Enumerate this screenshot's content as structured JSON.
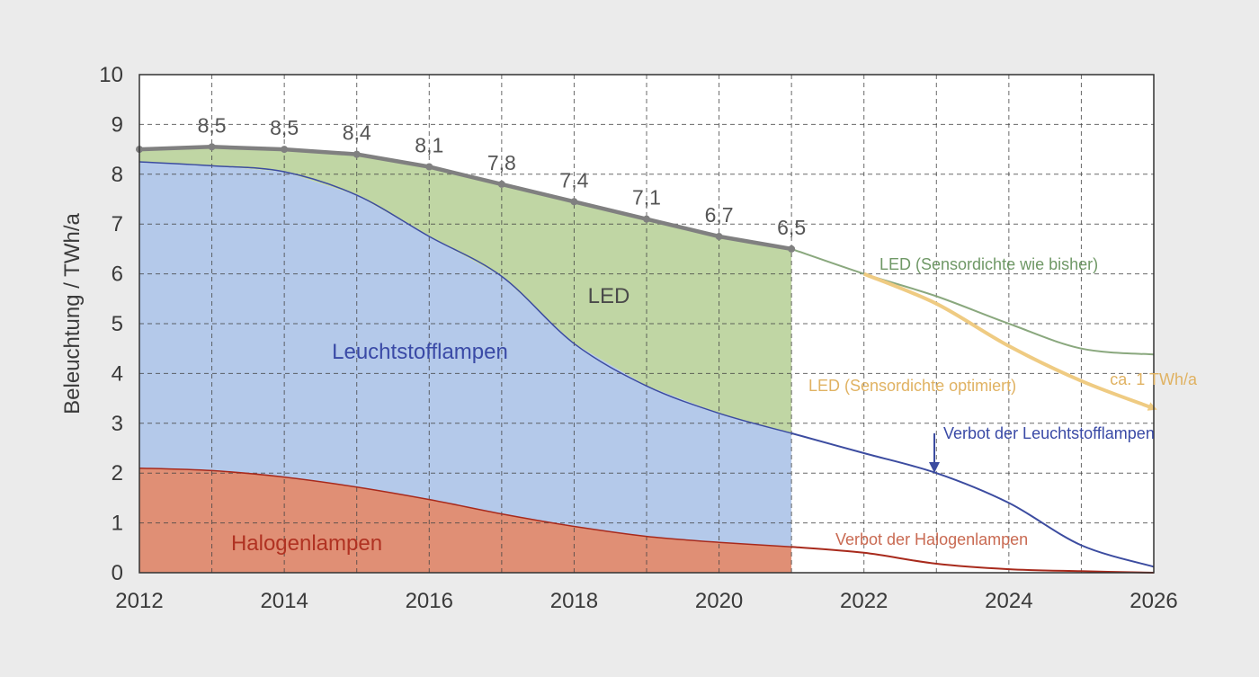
{
  "chart_data": {
    "type": "area",
    "ylabel": "Beleuchtung / TWh/a",
    "xlabel": "",
    "xlim": [
      2012,
      2026
    ],
    "ylim": [
      0,
      10
    ],
    "x_ticks": [
      "2012",
      "2014",
      "2016",
      "2018",
      "2020",
      "2022",
      "2024",
      "2026"
    ],
    "y_ticks": [
      "0",
      "1",
      "2",
      "3",
      "4",
      "5",
      "6",
      "7",
      "8",
      "9",
      "10"
    ],
    "grid": true,
    "colors": {
      "halogen_fill": "#e08f75",
      "halogen_line": "#a82a1c",
      "leucht_fill": "#b4c9ea",
      "leucht_line": "#3c4ca0",
      "led_fill": "#c0d6a4",
      "led_line": "#8aa87e",
      "led_opt_line": "#efcb82",
      "total_line": "#808080",
      "halogen_text": "#b03222",
      "leucht_text": "#3a4aa6",
      "led_opt_text": "#e0b262",
      "led_text": "#4a4a4a"
    },
    "totals": {
      "x": [
        2012,
        2013,
        2014,
        2015,
        2016,
        2017,
        2018,
        2019,
        2020,
        2021
      ],
      "values": [
        8.5,
        8.55,
        8.5,
        8.4,
        8.15,
        7.8,
        7.45,
        7.1,
        6.75,
        6.5
      ],
      "labels": [
        "8,5",
        "8,5",
        "8,4",
        "8,1",
        "7,8",
        "7,4",
        "7,1",
        "6,7",
        "6,5"
      ],
      "label_x": [
        2013,
        2014,
        2015,
        2016,
        2017,
        2018,
        2019,
        2020,
        2021
      ]
    },
    "series": [
      {
        "name": "Halogenlampen",
        "x": [
          2012,
          2013,
          2014,
          2015,
          2016,
          2017,
          2018,
          2019,
          2020,
          2021
        ],
        "values": [
          2.1,
          2.05,
          1.92,
          1.72,
          1.47,
          1.18,
          0.93,
          0.73,
          0.61,
          0.52
        ]
      },
      {
        "name": "Leuchtstofflampen",
        "x": [
          2012,
          2013,
          2014,
          2015,
          2016,
          2017,
          2018,
          2019,
          2020,
          2021
        ],
        "values": [
          8.25,
          8.17,
          8.05,
          7.58,
          6.75,
          5.95,
          4.6,
          3.75,
          3.2,
          2.8
        ]
      },
      {
        "name": "LED",
        "x": [
          2012,
          2013,
          2014,
          2015,
          2016,
          2017,
          2018,
          2019,
          2020,
          2021
        ],
        "values": [
          8.5,
          8.55,
          8.5,
          8.4,
          8.15,
          7.8,
          7.45,
          7.1,
          6.75,
          6.5
        ]
      }
    ],
    "projections": [
      {
        "name": "LED (Sensordichte wie bisher)",
        "x": [
          2021,
          2022,
          2023,
          2024,
          2025,
          2026
        ],
        "values": [
          6.5,
          6.0,
          5.55,
          5.0,
          4.5,
          4.38
        ]
      },
      {
        "name": "LED (Sensordichte optimiert)",
        "x": [
          2022,
          2023,
          2024,
          2025,
          2026
        ],
        "values": [
          6.0,
          5.4,
          4.55,
          3.85,
          3.3
        ]
      },
      {
        "name": "Leuchtstofflampen",
        "x": [
          2021,
          2022,
          2023,
          2024,
          2025,
          2026
        ],
        "values": [
          2.8,
          2.4,
          2.0,
          1.4,
          0.55,
          0.12
        ]
      },
      {
        "name": "Halogenlampen",
        "x": [
          2021,
          2022,
          2023,
          2024,
          2025,
          2026
        ],
        "values": [
          0.52,
          0.4,
          0.18,
          0.07,
          0.03,
          0.0
        ]
      }
    ],
    "annotations": [
      {
        "text": "LED",
        "kind": "area-label"
      },
      {
        "text": "Leuchtstofflampen",
        "kind": "area-label"
      },
      {
        "text": "Halogenlampen",
        "kind": "area-label"
      },
      {
        "text": "LED (Sensordichte wie bisher)",
        "kind": "line-label"
      },
      {
        "text": "LED (Sensordichte optimiert)",
        "kind": "line-label"
      },
      {
        "text": "ca. 1 TWh/a",
        "kind": "line-label"
      },
      {
        "text": "Verbot der Leuchtstofflampen",
        "kind": "event",
        "x": 2023
      },
      {
        "text": "Verbot der Halogenlampen",
        "kind": "event"
      }
    ]
  }
}
